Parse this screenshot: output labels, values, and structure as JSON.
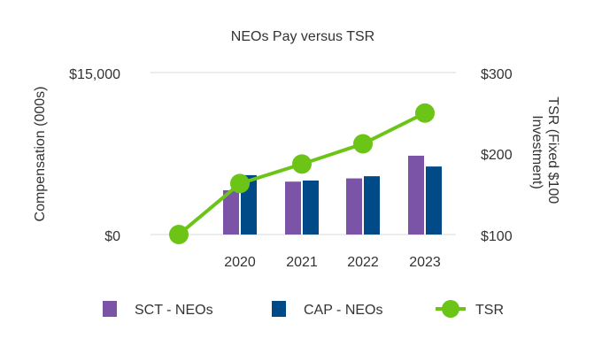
{
  "chart_data": {
    "type": "bar",
    "title": "NEOs Pay versus TSR",
    "ylabel": "Compensation (000s)",
    "y2label": [
      "TSR (Fixed $100",
      "Investment)"
    ],
    "ylim": [
      0,
      15000
    ],
    "y2lim": [
      100,
      300
    ],
    "y_ticks": [
      "$15,000",
      "$0"
    ],
    "y2_ticks": [
      "$300",
      "$200",
      "$100"
    ],
    "categories": [
      "",
      "2020",
      "2021",
      "2022",
      "2023"
    ],
    "series": [
      {
        "name": "SCT - NEOs",
        "type": "bar",
        "color": "#7B54A8",
        "values": [
          null,
          4100,
          4900,
          5200,
          7300
        ]
      },
      {
        "name": "CAP - NEOs",
        "type": "bar",
        "color": "#004B87",
        "values": [
          null,
          5500,
          5000,
          5400,
          6300
        ]
      },
      {
        "name": "TSR",
        "type": "line",
        "axis": "right",
        "color": "#6CC417",
        "values": [
          100,
          163,
          187,
          212,
          250
        ]
      }
    ],
    "grid": false,
    "legend_position": "bottom"
  }
}
